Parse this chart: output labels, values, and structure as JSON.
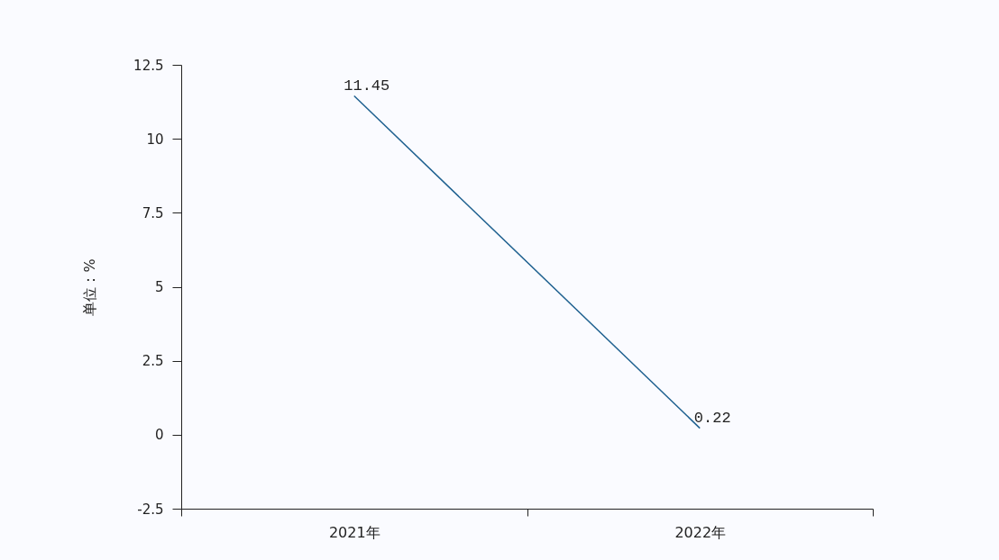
{
  "chart_data": {
    "type": "line",
    "ylabel": "单位：%",
    "categories": [
      "2021年",
      "2022年"
    ],
    "series": [
      {
        "color": "#1f6190",
        "values": [
          11.45,
          0.22
        ]
      }
    ],
    "ylim": [
      -2.5,
      12.5
    ],
    "yticks": [
      -2.5,
      0,
      2.5,
      5,
      7.5,
      10,
      12.5
    ],
    "data_labels": true,
    "grid": false,
    "legend": false,
    "marker": "none"
  }
}
